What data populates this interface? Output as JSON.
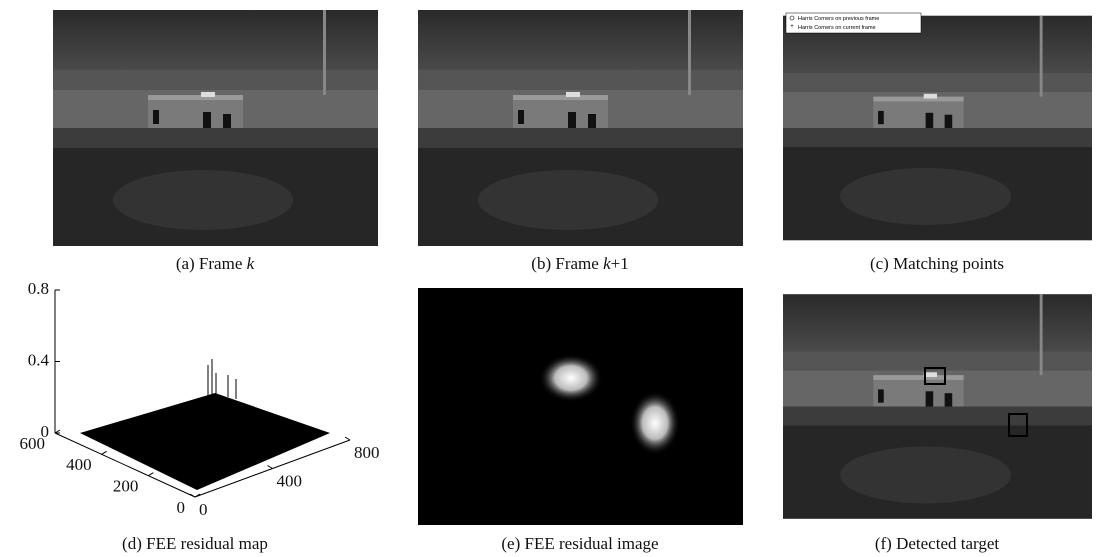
{
  "panels": [
    {
      "caption": [
        {
          "text": "(a) Frame "
        },
        {
          "text": "k",
          "italic": true
        }
      ]
    },
    {
      "caption": [
        {
          "text": "(b) Frame "
        },
        {
          "text": "k",
          "italic": true
        },
        {
          "text": "+1"
        }
      ]
    },
    {
      "caption": [
        {
          "text": "(c) Matching points"
        }
      ]
    },
    {
      "caption": [
        {
          "text": "(d) FEE residual map"
        }
      ]
    },
    {
      "caption": [
        {
          "text": "(e) FEE residual image"
        }
      ]
    },
    {
      "caption": [
        {
          "text": "(f) Detected target"
        }
      ]
    }
  ],
  "legend": [
    "Harris Corners on previous frame",
    "Harris Corners on current frame"
  ],
  "plot": {
    "zlim": [
      0,
      0.8
    ],
    "zticks": [
      0,
      0.4,
      0.8
    ],
    "ylim": [
      0,
      600
    ],
    "yticks": [
      0,
      200,
      400,
      600
    ],
    "xlim": [
      0,
      800
    ],
    "xticks": [
      0,
      400,
      800
    ]
  }
}
